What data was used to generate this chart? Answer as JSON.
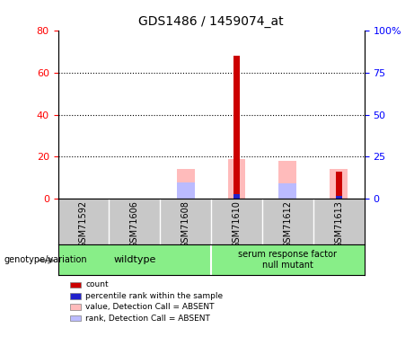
{
  "title": "GDS1486 / 1459074_at",
  "samples": [
    "GSM71592",
    "GSM71606",
    "GSM71608",
    "GSM71610",
    "GSM71612",
    "GSM71613"
  ],
  "wildtype_label": "wildtype",
  "mutant_label": "serum response factor\nnull mutant",
  "genotype_label": "genotype/variation",
  "left_ylim": [
    0,
    80
  ],
  "right_ylim": [
    0,
    100
  ],
  "left_yticks": [
    0,
    20,
    40,
    60,
    80
  ],
  "right_yticks": [
    0,
    25,
    50,
    75,
    100
  ],
  "right_yticklabels": [
    "0",
    "25",
    "50",
    "75",
    "100%"
  ],
  "red_values": [
    0,
    0,
    0,
    68,
    0,
    13
  ],
  "blue_values": [
    0,
    0,
    0,
    3,
    0,
    2
  ],
  "pink_values": [
    0,
    0,
    14,
    19,
    18,
    14
  ],
  "lightblue_values": [
    0,
    0,
    10,
    0,
    9,
    0
  ],
  "red_color": "#cc0000",
  "blue_color": "#2222cc",
  "pink_color": "#ffbbbb",
  "lightblue_color": "#bbbbff",
  "gray_bg": "#c8c8c8",
  "green_bg": "#88ee88",
  "legend_items": [
    {
      "color": "#cc0000",
      "label": "count"
    },
    {
      "color": "#2222cc",
      "label": "percentile rank within the sample"
    },
    {
      "color": "#ffbbbb",
      "label": "value, Detection Call = ABSENT"
    },
    {
      "color": "#bbbbff",
      "label": "rank, Detection Call = ABSENT"
    }
  ]
}
